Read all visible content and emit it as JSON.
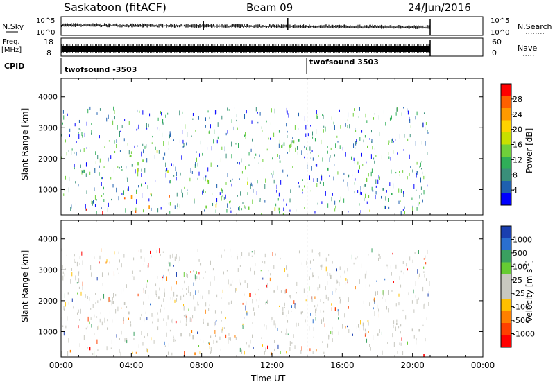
{
  "header": {
    "title": "Saskatoon (fitACF)",
    "beam": "Beam 09",
    "date": "24/Jun/2016"
  },
  "status_panel": {
    "nsky_label": "N.Sky",
    "nsky_ticks": [
      "10^5",
      "10^0"
    ],
    "nsearch_label": "N.Search",
    "nsearch_ticks": [
      "10^5",
      "10^0"
    ],
    "freq_label": "Freq.",
    "freq_unit": "[MHz]",
    "freq_ticks": [
      "18",
      "8"
    ],
    "nave_label": "Nave",
    "nave_ticks": [
      "60",
      "0"
    ],
    "cpid_label": "CPID",
    "cpid_programs": [
      {
        "name": "twofsound -3503",
        "start_hour": 0
      },
      {
        "name": "twofsound 3503",
        "start_hour": 14
      }
    ]
  },
  "chart_data": [
    {
      "type": "heatmap",
      "panel": "power",
      "xlabel": "Time UT",
      "ylabel": "Slant Range [km]",
      "x_ticks": [
        "00:00",
        "04:00",
        "08:00",
        "12:00",
        "16:00",
        "20:00",
        "00:00"
      ],
      "xlim_hours": [
        0,
        24
      ],
      "ylim": [
        180,
        4600
      ],
      "y_ticks": [
        1000,
        2000,
        3000,
        4000
      ],
      "colorbar": {
        "label": "Power [dB]",
        "ticks": [
          "28",
          "24",
          "20",
          "16",
          "12",
          "8",
          "4"
        ],
        "colors": [
          "#ff0000",
          "#ff6000",
          "#ff9a00",
          "#ffd200",
          "#c8e000",
          "#6fd03a",
          "#2fae58",
          "#3a8f7a",
          "#1f60b0",
          "#0000ff"
        ]
      },
      "data_end_hour": 21.0,
      "regions": [
        {
          "t0": 0.0,
          "t1": 6.6,
          "r0": 1600,
          "r1": 2300,
          "level": 0.45
        },
        {
          "t0": 0.0,
          "t1": 3.0,
          "r0": 200,
          "r1": 650,
          "level": 0.9
        },
        {
          "t0": 3.0,
          "t1": 8.5,
          "r0": 200,
          "r1": 900,
          "level": 0.75
        },
        {
          "t0": 6.5,
          "t1": 11.5,
          "r0": 200,
          "r1": 1400,
          "level": 0.55
        },
        {
          "t0": 11.5,
          "t1": 21.0,
          "r0": 200,
          "r1": 450,
          "level": 0.5
        },
        {
          "t0": 12.0,
          "t1": 16.0,
          "r0": 1600,
          "r1": 3000,
          "level": 0.35
        },
        {
          "t0": 15.0,
          "t1": 21.0,
          "r0": 750,
          "r1": 1500,
          "level": 0.3
        }
      ]
    },
    {
      "type": "heatmap",
      "panel": "velocity",
      "xlabel": "Time UT",
      "ylabel": "Slant Range [km]",
      "x_ticks": [
        "00:00",
        "04:00",
        "08:00",
        "12:00",
        "16:00",
        "20:00",
        "00:00"
      ],
      "xlim_hours": [
        0,
        24
      ],
      "ylim": [
        180,
        4600
      ],
      "y_ticks": [
        1000,
        2000,
        3000,
        4000
      ],
      "colorbar": {
        "label": "Velocity",
        "unit": "[m s",
        "unit_exp": "-1",
        "unit_end": "]",
        "ticks": [
          "1000",
          "500",
          "100",
          "25",
          "-25",
          "-100",
          "-500",
          "-1000"
        ],
        "colors": [
          "#1a3fb0",
          "#2a6fd0",
          "#3aa060",
          "#66cc33",
          "#c8c8c0",
          "#c8c8c0",
          "#ffc000",
          "#ff8000",
          "#ff4000",
          "#ff0000"
        ]
      },
      "data_end_hour": 21.0,
      "regions": [
        {
          "t0": 0.0,
          "t1": 6.6,
          "r0": 1600,
          "r1": 2300,
          "level": 0.5
        },
        {
          "t0": 0.0,
          "t1": 3.0,
          "r0": 200,
          "r1": 650,
          "level": 0.7
        },
        {
          "t0": 3.0,
          "t1": 8.5,
          "r0": 200,
          "r1": 900,
          "level": 0.55
        },
        {
          "t0": 6.5,
          "t1": 11.5,
          "r0": 200,
          "r1": 1400,
          "level": 0.45
        },
        {
          "t0": 11.5,
          "t1": 21.0,
          "r0": 200,
          "r1": 450,
          "level": 0.7
        },
        {
          "t0": 12.0,
          "t1": 16.0,
          "r0": 1600,
          "r1": 3000,
          "level": 0.5
        },
        {
          "t0": 15.0,
          "t1": 21.0,
          "r0": 750,
          "r1": 1500,
          "level": 0.5
        }
      ]
    }
  ]
}
